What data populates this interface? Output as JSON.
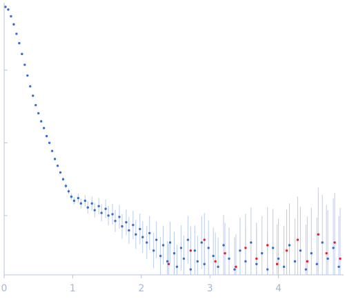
{
  "chart_data": {
    "type": "scatter",
    "title": "",
    "xlabel": "",
    "ylabel": "",
    "xlim": [
      0,
      4.95
    ],
    "ylim": [
      0,
      1.0
    ],
    "grid": false,
    "legend": "none",
    "x_ticks": [
      0,
      1,
      2,
      3,
      4
    ],
    "x_tick_labels": [
      "0",
      "1",
      "2",
      "3",
      "4"
    ],
    "y_ticks": [
      0.22,
      0.49,
      0.76
    ],
    "y_tick_labels": [
      "",
      "",
      ""
    ],
    "colors": {
      "axis": "#b7c4dc",
      "tick_label": "#a4b6d4",
      "points_main": "#3b6cc6",
      "points_outlier": "#e4202e",
      "error_bars": "#b9cbec"
    },
    "series": [
      {
        "color": "#3b6cc6",
        "points": [
          [
            0.02,
            0.995
          ],
          [
            0.06,
            0.985
          ],
          [
            0.1,
            0.96
          ],
          [
            0.14,
            0.93
          ],
          [
            0.18,
            0.895
          ],
          [
            0.22,
            0.86
          ],
          [
            0.26,
            0.82
          ],
          [
            0.3,
            0.78
          ],
          [
            0.34,
            0.74
          ],
          [
            0.38,
            0.7
          ],
          [
            0.42,
            0.665
          ],
          [
            0.46,
            0.63
          ],
          [
            0.5,
            0.6
          ],
          [
            0.54,
            0.57
          ],
          [
            0.58,
            0.545
          ],
          [
            0.62,
            0.515
          ],
          [
            0.66,
            0.49
          ],
          [
            0.7,
            0.46
          ],
          [
            0.74,
            0.43
          ],
          [
            0.78,
            0.405
          ],
          [
            0.82,
            0.38
          ],
          [
            0.86,
            0.355
          ],
          [
            0.9,
            0.33
          ],
          [
            0.94,
            0.31
          ],
          [
            0.98,
            0.29
          ],
          [
            1.02,
            0.275
          ],
          [
            1.08,
            0.285
          ],
          [
            1.12,
            0.265
          ],
          [
            1.18,
            0.275
          ],
          [
            1.22,
            0.25
          ],
          [
            1.28,
            0.265
          ],
          [
            1.32,
            0.24
          ],
          [
            1.38,
            0.255
          ],
          [
            1.42,
            0.23
          ],
          [
            1.48,
            0.245
          ],
          [
            1.52,
            0.22
          ],
          [
            1.58,
            0.225
          ],
          [
            1.62,
            0.2
          ],
          [
            1.68,
            0.215
          ],
          [
            1.72,
            0.18
          ],
          [
            1.78,
            0.195
          ],
          [
            1.82,
            0.165
          ],
          [
            1.88,
            0.185
          ],
          [
            1.92,
            0.15
          ],
          [
            1.98,
            0.17
          ],
          [
            2.02,
            0.14
          ],
          [
            2.08,
            0.12
          ],
          [
            2.12,
            0.155
          ],
          [
            2.18,
            0.09
          ],
          [
            2.22,
            0.13
          ],
          [
            2.28,
            0.07
          ],
          [
            2.32,
            0.11
          ],
          [
            2.38,
            0.05
          ],
          [
            2.42,
            0.12
          ],
          [
            2.48,
            0.08
          ],
          [
            2.52,
            0.03
          ],
          [
            2.58,
            0.1
          ],
          [
            2.62,
            0.06
          ],
          [
            2.68,
            0.13
          ],
          [
            2.72,
            0.02
          ],
          [
            2.78,
            0.09
          ],
          [
            2.82,
            0.05
          ],
          [
            2.88,
            0.12
          ],
          [
            2.92,
            0.04
          ],
          [
            2.98,
            0.1
          ],
          [
            3.05,
            0.07
          ],
          [
            3.12,
            0.03
          ],
          [
            3.2,
            0.11
          ],
          [
            3.28,
            0.06
          ],
          [
            3.36,
            0.02
          ],
          [
            3.44,
            0.09
          ],
          [
            3.52,
            0.05
          ],
          [
            3.6,
            0.12
          ],
          [
            3.68,
            0.04
          ],
          [
            3.76,
            0.08
          ],
          [
            3.84,
            0.02
          ],
          [
            3.92,
            0.1
          ],
          [
            4.0,
            0.06
          ],
          [
            4.08,
            0.03
          ],
          [
            4.16,
            0.11
          ],
          [
            4.24,
            0.05
          ],
          [
            4.32,
            0.09
          ],
          [
            4.4,
            0.02
          ],
          [
            4.48,
            0.08
          ],
          [
            4.56,
            0.04
          ],
          [
            4.64,
            0.12
          ],
          [
            4.72,
            0.06
          ],
          [
            4.8,
            0.1
          ],
          [
            4.88,
            0.03
          ]
        ]
      },
      {
        "color": "#e4202e",
        "points": [
          [
            2.4,
            0.04
          ],
          [
            2.72,
            0.09
          ],
          [
            2.92,
            0.13
          ],
          [
            3.08,
            0.05
          ],
          [
            3.22,
            0.08
          ],
          [
            3.38,
            0.03
          ],
          [
            3.52,
            0.1
          ],
          [
            3.68,
            0.06
          ],
          [
            3.84,
            0.11
          ],
          [
            3.98,
            0.04
          ],
          [
            4.12,
            0.09
          ],
          [
            4.28,
            0.13
          ],
          [
            4.42,
            0.05
          ],
          [
            4.58,
            0.15
          ],
          [
            4.7,
            0.08
          ],
          [
            4.82,
            0.12
          ],
          [
            4.9,
            0.06
          ]
        ]
      }
    ]
  }
}
